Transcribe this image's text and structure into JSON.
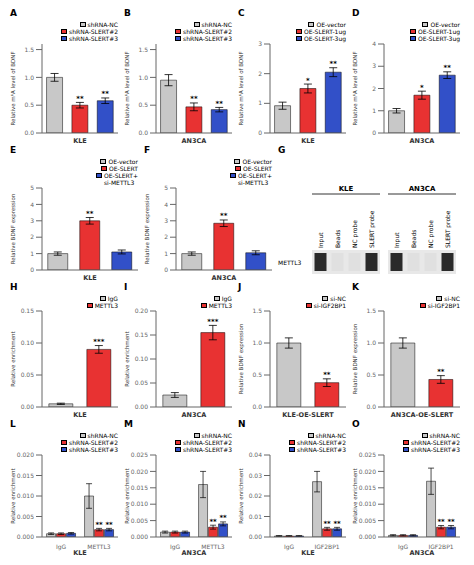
{
  "chart_data": [
    {
      "type": "bar",
      "title": "A",
      "xlabel": "KLE",
      "ylabel": "Relative m⁶A level of BDNF",
      "categories": [
        "shRNA-NC",
        "shRNA-SLERT#2",
        "shRNA-SLERT#3"
      ],
      "values": [
        1.0,
        0.5,
        0.58
      ],
      "errors": [
        0.07,
        0.05,
        0.05
      ],
      "annotations": [
        null,
        "**",
        "**"
      ],
      "colors": [
        "#c8c8c8",
        "#e83232",
        "#3250c8"
      ],
      "ylim": [
        0,
        1.6
      ],
      "yticks": [
        {
          "value": 0,
          "label": "0.0"
        },
        0.5,
        {
          "value": 1,
          "label": "1.0"
        },
        1.5
      ],
      "legend": "upper right",
      "tick_labels": "y"
    },
    {
      "type": "bar",
      "title": "B",
      "xlabel": "AN3CA",
      "ylabel": "Relative m⁶A level of BDNF",
      "categories": [
        "shRNA-NC",
        "shRNA-SLERT#2",
        "shRNA-SLERT#3"
      ],
      "values": [
        0.95,
        0.47,
        0.42
      ],
      "errors": [
        0.1,
        0.07,
        0.04
      ],
      "annotations": [
        null,
        "**",
        "**"
      ],
      "colors": [
        "#c8c8c8",
        "#e83232",
        "#3250c8"
      ],
      "ylim": [
        0,
        1.6
      ],
      "yticks": [
        {
          "value": 0,
          "label": "0.0"
        },
        0.5,
        {
          "value": 1,
          "label": "1.0"
        },
        1.5
      ],
      "legend": "upper right",
      "tick_labels": "y"
    },
    {
      "type": "bar",
      "title": "C",
      "xlabel": "KLE",
      "ylabel": "Relative m⁶A level of BDNF",
      "categories": [
        "OE-vector",
        "OE-SLERT-1ug",
        "OE-SLERT-3ug"
      ],
      "values": [
        0.92,
        1.5,
        2.05
      ],
      "errors": [
        0.12,
        0.15,
        0.15
      ],
      "annotations": [
        null,
        "*",
        "**"
      ],
      "colors": [
        "#c8c8c8",
        "#e83232",
        "#3250c8"
      ],
      "ylim": [
        0,
        3
      ],
      "yticks": [
        0,
        1,
        2,
        3
      ],
      "legend": "upper right",
      "tick_labels": "y"
    },
    {
      "type": "bar",
      "title": "D",
      "xlabel": "AN3CA",
      "ylabel": "Relative m⁶A level of BDNF",
      "categories": [
        "OE-vector",
        "OE-SLERT-1ug",
        "OE-SLERT-3ug"
      ],
      "values": [
        1.0,
        1.7,
        2.6
      ],
      "errors": [
        0.1,
        0.18,
        0.15
      ],
      "annotations": [
        null,
        "*",
        "**"
      ],
      "colors": [
        "#c8c8c8",
        "#e83232",
        "#3250c8"
      ],
      "ylim": [
        0,
        4
      ],
      "yticks": [
        0,
        1,
        2,
        3,
        4
      ],
      "legend": "upper right",
      "tick_labels": "y"
    },
    {
      "type": "bar",
      "title": "E",
      "xlabel": "KLE",
      "ylabel": "Relative BDNF expression",
      "categories": [
        "OE-vector",
        "OE-SLERT",
        "OE-SLERT+\nsi-METTL3"
      ],
      "values": [
        1.0,
        3.0,
        1.1
      ],
      "errors": [
        0.1,
        0.2,
        0.12
      ],
      "annotations": [
        null,
        "**",
        null
      ],
      "colors": [
        "#c8c8c8",
        "#e83232",
        "#3250c8"
      ],
      "ylim": [
        0,
        5
      ],
      "yticks": [
        0,
        1,
        2,
        3,
        4,
        5
      ],
      "legend": "upper right",
      "tick_labels": "y"
    },
    {
      "type": "bar",
      "title": "F",
      "xlabel": "AN3CA",
      "ylabel": "Relative BDNF expression",
      "categories": [
        "OE-vector",
        "OE-SLERT",
        "OE-SLERT+\nsi-METTL3"
      ],
      "values": [
        1.0,
        2.85,
        1.05
      ],
      "errors": [
        0.1,
        0.2,
        0.12
      ],
      "annotations": [
        null,
        "**",
        null
      ],
      "colors": [
        "#c8c8c8",
        "#e83232",
        "#3250c8"
      ],
      "ylim": [
        0,
        5
      ],
      "yticks": [
        0,
        1,
        2,
        3,
        4,
        5
      ],
      "legend": "upper right",
      "tick_labels": "y"
    },
    {
      "type": "blot",
      "title": "G",
      "ylabel": "METTL3",
      "groups": [
        {
          "name": "KLE",
          "categories": [
            "Input",
            "Beads",
            "NC probe",
            "SLERT probe"
          ],
          "colors": [
            "#2a2a2a",
            "#e0e0e0",
            "#e0e0e0",
            "#2a2a2a"
          ]
        },
        {
          "name": "AN3CA",
          "categories": [
            "Input",
            "Beads",
            "NC probe",
            "SLERT probe"
          ],
          "colors": [
            "#2a2a2a",
            "#e0e0e0",
            "#e0e0e0",
            "#2a2a2a"
          ]
        }
      ]
    },
    {
      "type": "bar",
      "title": "H",
      "xlabel": "KLE",
      "ylabel": "Relative enrichment",
      "categories": [
        "IgG",
        "METTL3"
      ],
      "values": [
        0.005,
        0.09
      ],
      "errors": [
        0.001,
        0.006
      ],
      "annotations": [
        null,
        "***"
      ],
      "colors": [
        "#c8c8c8",
        "#e83232"
      ],
      "ylim": [
        0,
        0.15
      ],
      "yticks": [
        {
          "value": 0,
          "label": "0.00"
        },
        0.05,
        {
          "value": 0.1,
          "label": "0.10"
        },
        0.15
      ],
      "legend": "upper right",
      "tick_labels": "y"
    },
    {
      "type": "bar",
      "title": "I",
      "xlabel": "AN3CA",
      "ylabel": "Relative enrichment",
      "categories": [
        "IgG",
        "METTL3"
      ],
      "values": [
        0.025,
        0.155
      ],
      "errors": [
        0.005,
        0.015
      ],
      "annotations": [
        null,
        "***"
      ],
      "colors": [
        "#c8c8c8",
        "#e83232"
      ],
      "ylim": [
        0,
        0.2
      ],
      "yticks": [
        {
          "value": 0,
          "label": "0.00"
        },
        0.05,
        {
          "value": 0.1,
          "label": "0.10"
        },
        0.15,
        {
          "value": 0.2,
          "label": "0.20"
        }
      ],
      "legend": "upper right",
      "tick_labels": "y"
    },
    {
      "type": "bar",
      "title": "J",
      "xlabel": "KLE-OE-SLERT",
      "ylabel": "Relative BDNF expression",
      "categories": [
        "si-NC",
        "si-IGF2BP1"
      ],
      "values": [
        1.0,
        0.38
      ],
      "errors": [
        0.08,
        0.06
      ],
      "annotations": [
        null,
        "**"
      ],
      "colors": [
        "#c8c8c8",
        "#e83232"
      ],
      "ylim": [
        0,
        1.5
      ],
      "yticks": [
        {
          "value": 0,
          "label": "0.0"
        },
        0.5,
        {
          "value": 1,
          "label": "1.0"
        },
        1.5
      ],
      "legend": "upper right",
      "tick_labels": "y"
    },
    {
      "type": "bar",
      "title": "K",
      "xlabel": "AN3CA-OE-SLERT",
      "ylabel": "Relative BDNF expression",
      "categories": [
        "si-NC",
        "si-IGF2BP1"
      ],
      "values": [
        1.0,
        0.43
      ],
      "errors": [
        0.08,
        0.06
      ],
      "annotations": [
        null,
        "**"
      ],
      "colors": [
        "#c8c8c8",
        "#e83232"
      ],
      "ylim": [
        0,
        1.5
      ],
      "yticks": [
        {
          "value": 0,
          "label": "0.0"
        },
        0.5,
        {
          "value": 1,
          "label": "1.0"
        },
        1.5
      ],
      "legend": "upper right",
      "tick_labels": "y"
    },
    {
      "type": "bar",
      "title": "L",
      "xlabel": "KLE",
      "ylabel": "Relative enrichment",
      "categories": [
        "IgG",
        "METTL3"
      ],
      "series": [
        {
          "name": "shRNA-NC",
          "color": "#c8c8c8",
          "values": [
            0.0008,
            0.01
          ],
          "errors": [
            0.0002,
            0.003
          ],
          "annotations": [
            null,
            null
          ]
        },
        {
          "name": "shRNA-SLERT#2",
          "color": "#e83232",
          "values": [
            0.0008,
            0.0018
          ],
          "errors": [
            0.0002,
            0.0003
          ],
          "annotations": [
            null,
            "**"
          ]
        },
        {
          "name": "shRNA-SLERT#3",
          "color": "#3250c8",
          "values": [
            0.0009,
            0.0018
          ],
          "errors": [
            0.0002,
            0.0003
          ],
          "annotations": [
            null,
            "**"
          ]
        }
      ],
      "ylim": [
        0,
        0.02
      ],
      "yticks": [
        {
          "value": 0,
          "label": "0.000"
        },
        0.005,
        {
          "value": 0.01,
          "label": "0.010"
        },
        0.015,
        {
          "value": 0.02,
          "label": "0.020"
        }
      ],
      "legend": "upper right"
    },
    {
      "type": "bar",
      "title": "M",
      "xlabel": "AN3CA",
      "ylabel": "Relative enrichment",
      "categories": [
        "IgG",
        "METTL3"
      ],
      "series": [
        {
          "name": "shRNA-NC",
          "color": "#c8c8c8",
          "values": [
            0.0015,
            0.016
          ],
          "errors": [
            0.0003,
            0.004
          ],
          "annotations": [
            null,
            null
          ]
        },
        {
          "name": "shRNA-SLERT#2",
          "color": "#e83232",
          "values": [
            0.0015,
            0.003
          ],
          "errors": [
            0.0003,
            0.0006
          ],
          "annotations": [
            null,
            "**"
          ]
        },
        {
          "name": "shRNA-SLERT#3",
          "color": "#3250c8",
          "values": [
            0.0015,
            0.004
          ],
          "errors": [
            0.0003,
            0.0006
          ],
          "annotations": [
            null,
            "**"
          ]
        }
      ],
      "ylim": [
        0,
        0.025
      ],
      "yticks": [
        {
          "value": 0,
          "label": "0.000"
        },
        0.005,
        {
          "value": 0.01,
          "label": "0.010"
        },
        0.015,
        {
          "value": 0.02,
          "label": "0.020"
        },
        0.025
      ],
      "legend": "upper right"
    },
    {
      "type": "bar",
      "title": "N",
      "xlabel": "KLE",
      "ylabel": "Relative enrichment",
      "categories": [
        "IgG",
        "IGF2BP1"
      ],
      "series": [
        {
          "name": "shRNA-NC",
          "color": "#c8c8c8",
          "values": [
            0.0005,
            0.027
          ],
          "errors": [
            0.0002,
            0.005
          ],
          "annotations": [
            null,
            null
          ]
        },
        {
          "name": "shRNA-SLERT#2",
          "color": "#e83232",
          "values": [
            0.0005,
            0.004
          ],
          "errors": [
            0.0002,
            0.0007
          ],
          "annotations": [
            null,
            "**"
          ]
        },
        {
          "name": "shRNA-SLERT#3",
          "color": "#3250c8",
          "values": [
            0.0005,
            0.004
          ],
          "errors": [
            0.0002,
            0.0007
          ],
          "annotations": [
            null,
            "**"
          ]
        }
      ],
      "ylim": [
        0,
        0.04
      ],
      "yticks": [
        {
          "value": 0,
          "label": "0.00"
        },
        0.01,
        0.02,
        0.03,
        0.04
      ],
      "legend": "upper right"
    },
    {
      "type": "bar",
      "title": "O",
      "xlabel": "AN3CA",
      "ylabel": "Relative enrichment",
      "categories": [
        "IgG",
        "IGF2BP1"
      ],
      "series": [
        {
          "name": "shRNA-NC",
          "color": "#c8c8c8",
          "values": [
            0.0005,
            0.017
          ],
          "errors": [
            0.0002,
            0.004
          ],
          "annotations": [
            null,
            null
          ]
        },
        {
          "name": "shRNA-SLERT#2",
          "color": "#e83232",
          "values": [
            0.0005,
            0.003
          ],
          "errors": [
            0.0002,
            0.0005
          ],
          "annotations": [
            null,
            "**"
          ]
        },
        {
          "name": "shRNA-SLERT#3",
          "color": "#3250c8",
          "values": [
            0.0005,
            0.003
          ],
          "errors": [
            0.0002,
            0.0005
          ],
          "annotations": [
            null,
            "**"
          ]
        }
      ],
      "ylim": [
        0,
        0.025
      ],
      "yticks": [
        {
          "value": 0,
          "label": "0.000"
        },
        0.005,
        {
          "value": 0.01,
          "label": "0.010"
        },
        0.015,
        {
          "value": 0.02,
          "label": "0.020"
        },
        0.025
      ],
      "legend": "upper right"
    }
  ]
}
